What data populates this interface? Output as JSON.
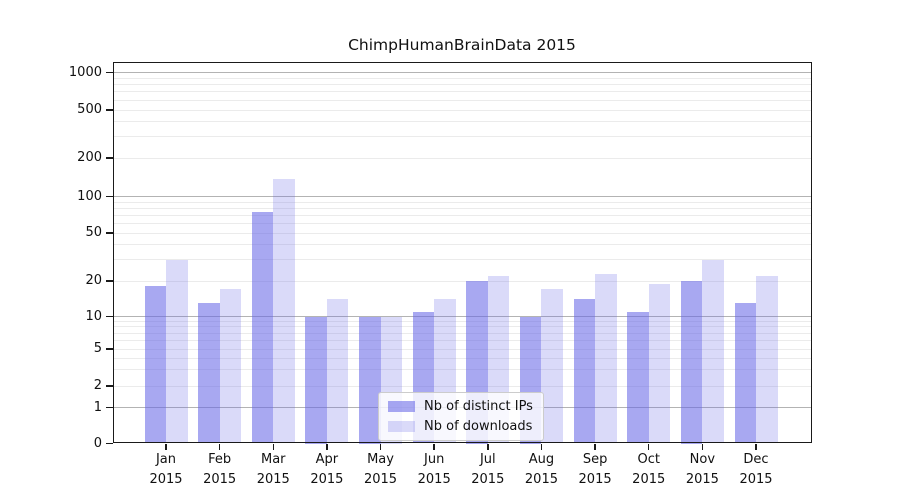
{
  "chart_data": {
    "type": "bar",
    "title": "ChimpHumanBrainData 2015",
    "categories": [
      "Jan",
      "Feb",
      "Mar",
      "Apr",
      "May",
      "Jun",
      "Jul",
      "Aug",
      "Sep",
      "Oct",
      "Nov",
      "Dec"
    ],
    "category_year": "2015",
    "series": [
      {
        "name": "Nb of distinct IPs",
        "color": "rgba(102,102,230,0.57)",
        "values": [
          18,
          13,
          75,
          10,
          10,
          11,
          20,
          10,
          14,
          11,
          20,
          13
        ]
      },
      {
        "name": "Nb of downloads",
        "color": "rgba(102,102,230,0.24)",
        "values": [
          30,
          17,
          136,
          14,
          10,
          14,
          22,
          17,
          23,
          19,
          30,
          22
        ]
      }
    ],
    "y_axis": {
      "scale": "log-with-zero",
      "ticks": [
        0,
        1,
        2,
        5,
        10,
        20,
        50,
        100,
        200,
        500,
        1000
      ],
      "major_gridline_values": [
        1,
        10,
        100,
        1000
      ],
      "range": [
        0,
        1000
      ]
    },
    "x_axis": {
      "tick_label_lines": 2
    },
    "legend": {
      "position": "inside-bottom-center",
      "entries": [
        "Nb of distinct IPs",
        "Nb of downloads"
      ]
    },
    "grid": true,
    "colors": {
      "grid_major": "#b3b3b3",
      "grid_minor": "#ebebeb",
      "spine": "#1a1a1a",
      "text": "#111111",
      "legend_border": "#cccccc",
      "legend_background": "rgba(255,255,255,0.8)"
    }
  }
}
